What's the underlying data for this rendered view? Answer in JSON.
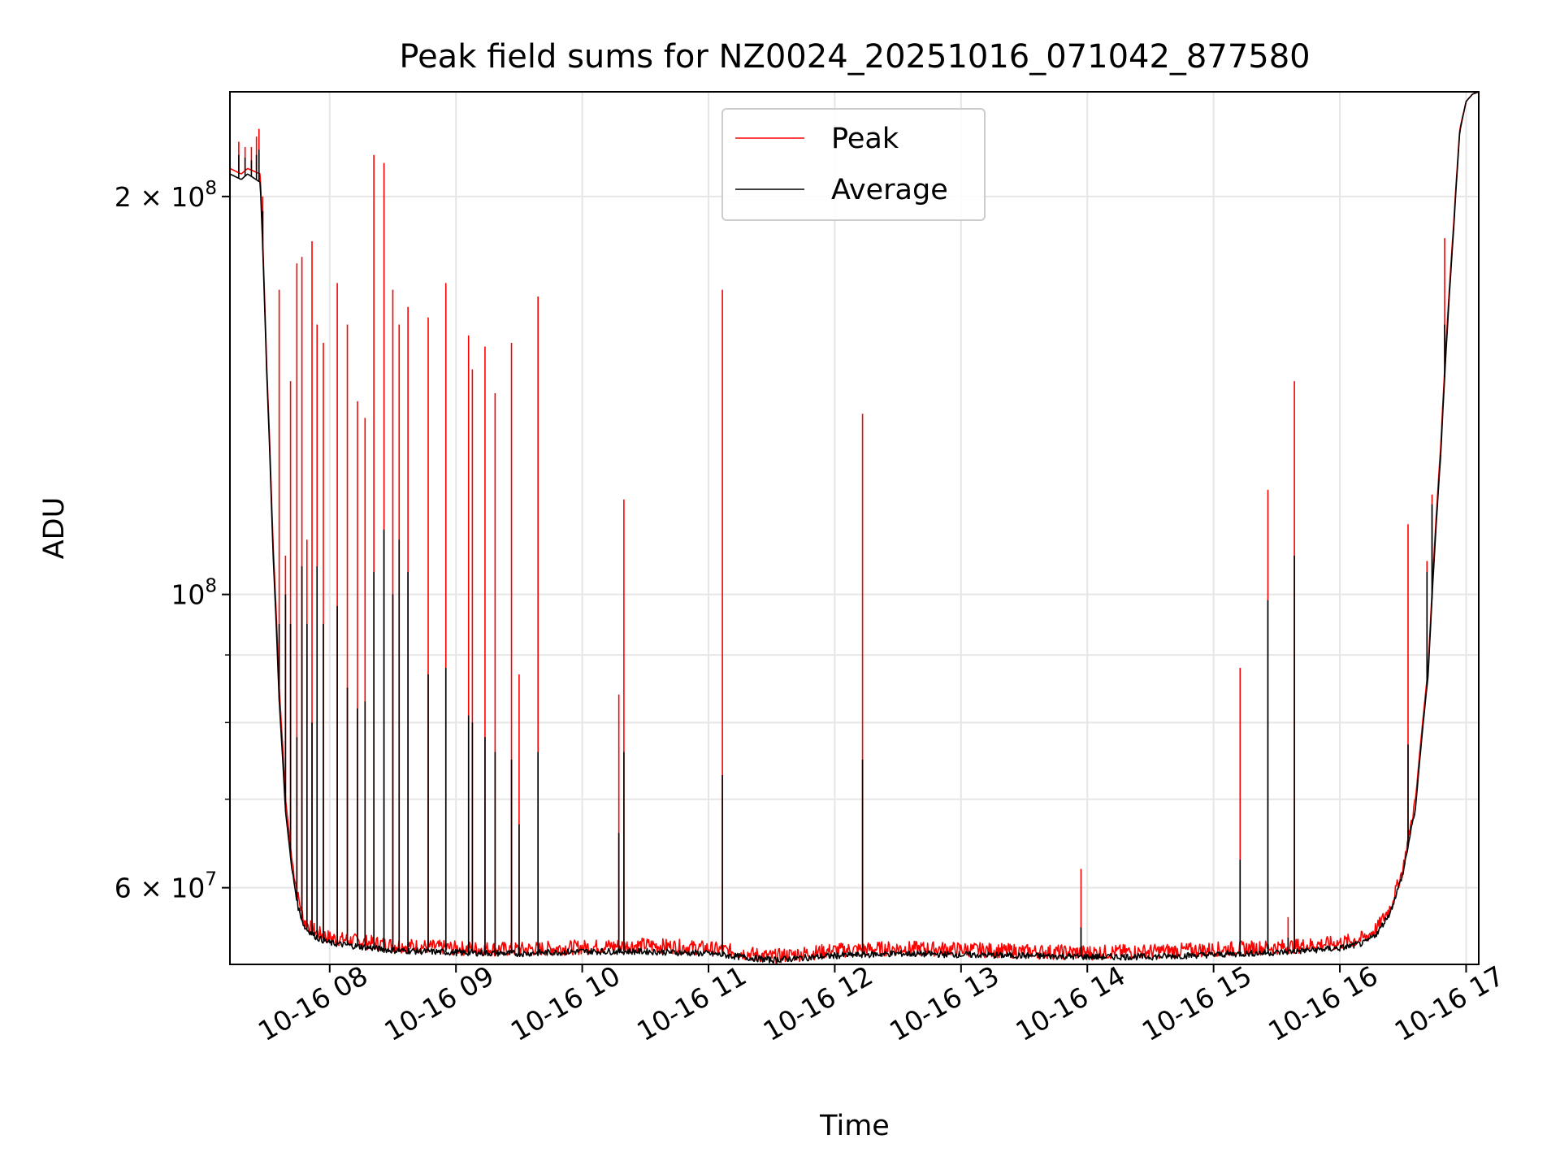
{
  "chart_data": {
    "type": "line",
    "title": "Peak field sums for NZ0024_20251016_071042_877580",
    "xlabel": "Time",
    "ylabel": "ADU",
    "x_unit": "hours (time of day on 10-16)",
    "xlim": [
      7.21,
      17.1
    ],
    "ylim": [
      52500000,
      240000000
    ],
    "yscale": "log",
    "grid": true,
    "legend_position": "top-center",
    "x_ticks": [
      {
        "value": 8,
        "label": "10-16 08"
      },
      {
        "value": 9,
        "label": "10-16 09"
      },
      {
        "value": 10,
        "label": "10-16 10"
      },
      {
        "value": 11,
        "label": "10-16 11"
      },
      {
        "value": 12,
        "label": "10-16 12"
      },
      {
        "value": 13,
        "label": "10-16 13"
      },
      {
        "value": 14,
        "label": "10-16 14"
      },
      {
        "value": 15,
        "label": "10-16 15"
      },
      {
        "value": 16,
        "label": "10-16 16"
      },
      {
        "value": 17,
        "label": "10-16 17"
      }
    ],
    "y_ticks_major": [
      {
        "value": 60000000,
        "base": "6 × 10",
        "exp": "7"
      },
      {
        "value": 100000000,
        "base": "10",
        "exp": "8"
      },
      {
        "value": 200000000,
        "base": "2 × 10",
        "exp": "8"
      }
    ],
    "y_ticks_minor": [
      70000000,
      80000000,
      90000000
    ],
    "baseline": {
      "x": [
        7.21,
        7.3,
        7.35,
        7.45,
        7.5,
        7.55,
        7.6,
        7.65,
        7.7,
        7.75,
        7.8,
        7.9,
        8.0,
        8.2,
        8.5,
        9.0,
        9.5,
        10.0,
        10.5,
        11.0,
        11.5,
        12.0,
        12.5,
        13.0,
        13.5,
        14.0,
        14.5,
        15.0,
        15.5,
        16.0,
        16.2,
        16.3,
        16.4,
        16.5,
        16.6,
        16.7,
        16.8,
        16.9,
        16.95,
        17.0,
        17.05,
        17.1
      ],
      "series": [
        {
          "name": "Peak",
          "color": "#ff0000",
          "values": [
            210000000,
            208000000,
            210000000,
            208000000,
            150000000,
            110000000,
            85000000,
            70000000,
            63000000,
            59000000,
            56500000,
            55500000,
            55000000,
            54700000,
            54300000,
            54000000,
            53900000,
            54100000,
            54300000,
            54000000,
            53200000,
            53800000,
            54000000,
            53900000,
            53700000,
            53600000,
            53700000,
            53900000,
            54100000,
            54500000,
            55000000,
            56000000,
            58000000,
            62000000,
            70000000,
            88000000,
            130000000,
            190000000,
            225000000,
            236000000,
            239000000,
            240000000
          ]
        },
        {
          "name": "Average",
          "color": "#000000",
          "values": [
            208000000,
            206000000,
            208000000,
            205000000,
            148000000,
            108000000,
            83000000,
            68500000,
            62000000,
            58000000,
            56000000,
            55000000,
            54500000,
            54200000,
            53800000,
            53600000,
            53500000,
            53700000,
            53700000,
            53500000,
            52900000,
            53300000,
            53500000,
            53400000,
            53300000,
            53200000,
            53200000,
            53400000,
            53600000,
            54000000,
            54500000,
            55500000,
            57500000,
            61500000,
            69000000,
            87000000,
            128000000,
            188000000,
            224000000,
            236000000,
            239000000,
            240000000
          ]
        }
      ]
    },
    "spikes": {
      "x": [
        7.28,
        7.33,
        7.38,
        7.42,
        7.44,
        7.47,
        7.6,
        7.65,
        7.69,
        7.74,
        7.78,
        7.82,
        7.86,
        7.9,
        7.95,
        8.06,
        8.14,
        8.22,
        8.28,
        8.35,
        8.43,
        8.5,
        8.55,
        8.62,
        8.78,
        8.92,
        9.1,
        9.13,
        9.23,
        9.31,
        9.44,
        9.5,
        9.65,
        10.29,
        10.33,
        11.11,
        12.22,
        13.95,
        15.21,
        15.43,
        15.59,
        15.64,
        16.54,
        16.69,
        16.73,
        16.83
      ],
      "series": [
        {
          "name": "Peak",
          "values": [
            220000000,
            218000000,
            218000000,
            222000000,
            225000000,
            200000000,
            170000000,
            107000000,
            145000000,
            178000000,
            180000000,
            110000000,
            185000000,
            160000000,
            155000000,
            172000000,
            160000000,
            140000000,
            136000000,
            215000000,
            212000000,
            170000000,
            160000000,
            165000000,
            162000000,
            172000000,
            157000000,
            148000000,
            154000000,
            142000000,
            155000000,
            87000000,
            168000000,
            84000000,
            118000000,
            170000000,
            137000000,
            62000000,
            88000000,
            120000000,
            57000000,
            145000000,
            113000000,
            106000000,
            119000000,
            186000000
          ]
        },
        {
          "name": "Average",
          "values": [
            215000000,
            214000000,
            213000000,
            215000000,
            217000000,
            195000000,
            95000000,
            100000000,
            95000000,
            78000000,
            105000000,
            95000000,
            80000000,
            105000000,
            95000000,
            98000000,
            85000000,
            82000000,
            83000000,
            104000000,
            112000000,
            100000000,
            110000000,
            104000000,
            87000000,
            88000000,
            81000000,
            80000000,
            78000000,
            76000000,
            75000000,
            67000000,
            76000000,
            66000000,
            76000000,
            73000000,
            75000000,
            56000000,
            63000000,
            99000000,
            55000000,
            107000000,
            77000000,
            104000000,
            117000000,
            160000000
          ]
        }
      ]
    }
  }
}
